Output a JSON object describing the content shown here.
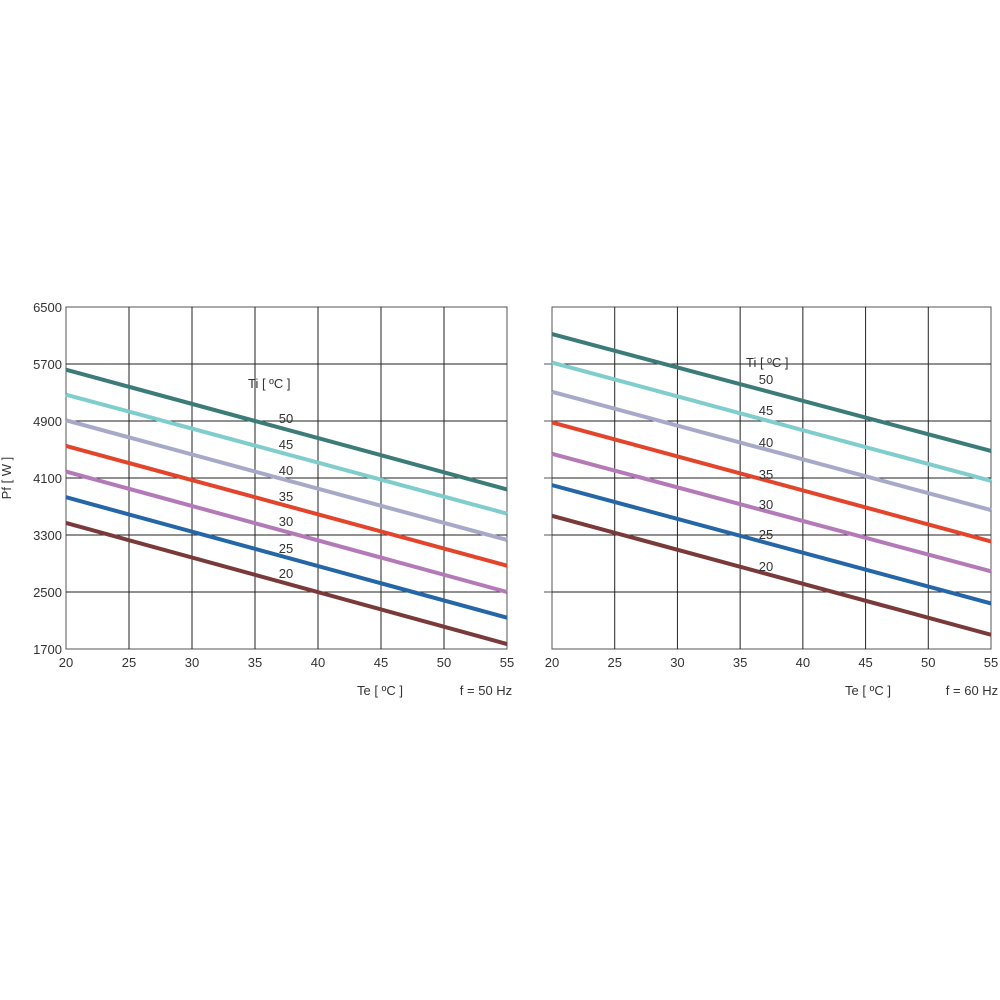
{
  "ylabel": "Pf  [ W ]",
  "colors": {
    "20": "#7b3a3a",
    "25": "#2566a8",
    "30": "#b47ab8",
    "35": "#e2452c",
    "40": "#a7a9c8",
    "45": "#7fcdcc",
    "50": "#3c7c78"
  },
  "chart_data": [
    {
      "type": "line",
      "xlabel": "Te  [ ºC ]",
      "freq_label": "f = 50 Hz",
      "legend_title": "Ti  [ ºC ]",
      "xlim": [
        20,
        55
      ],
      "ylim": [
        1700,
        6500
      ],
      "xticks": [
        20,
        25,
        30,
        35,
        40,
        45,
        50,
        55
      ],
      "yticks": [
        1700,
        2500,
        3300,
        4100,
        4900,
        5700,
        6500
      ],
      "grid": true,
      "series": [
        {
          "name": "50",
          "x": [
            20,
            55
          ],
          "y": [
            5620,
            3940
          ]
        },
        {
          "name": "45",
          "x": [
            20,
            55
          ],
          "y": [
            5270,
            3600
          ]
        },
        {
          "name": "40",
          "x": [
            20,
            55
          ],
          "y": [
            4910,
            3230
          ]
        },
        {
          "name": "35",
          "x": [
            20,
            55
          ],
          "y": [
            4550,
            2870
          ]
        },
        {
          "name": "30",
          "x": [
            20,
            55
          ],
          "y": [
            4190,
            2500
          ]
        },
        {
          "name": "25",
          "x": [
            20,
            55
          ],
          "y": [
            3830,
            2140
          ]
        },
        {
          "name": "20",
          "x": [
            20,
            55
          ],
          "y": [
            3470,
            1770
          ]
        }
      ]
    },
    {
      "type": "line",
      "xlabel": "Te  [ ºC ]",
      "freq_label": "f = 60 Hz",
      "legend_title": "Ti  [ ºC ]",
      "xlim": [
        20,
        55
      ],
      "ylim": [
        1700,
        6500
      ],
      "xticks": [
        20,
        25,
        30,
        35,
        40,
        45,
        50,
        55
      ],
      "yticks": [
        1700,
        2500,
        3300,
        4100,
        4900,
        5700,
        6500
      ],
      "grid": true,
      "series": [
        {
          "name": "50",
          "x": [
            20,
            55
          ],
          "y": [
            6120,
            4480
          ]
        },
        {
          "name": "45",
          "x": [
            20,
            55
          ],
          "y": [
            5720,
            4060
          ]
        },
        {
          "name": "40",
          "x": [
            20,
            55
          ],
          "y": [
            5310,
            3650
          ]
        },
        {
          "name": "35",
          "x": [
            20,
            55
          ],
          "y": [
            4880,
            3210
          ]
        },
        {
          "name": "30",
          "x": [
            20,
            55
          ],
          "y": [
            4440,
            2790
          ]
        },
        {
          "name": "25",
          "x": [
            20,
            55
          ],
          "y": [
            4000,
            2340
          ]
        },
        {
          "name": "20",
          "x": [
            20,
            55
          ],
          "y": [
            3570,
            1900
          ]
        }
      ]
    }
  ]
}
